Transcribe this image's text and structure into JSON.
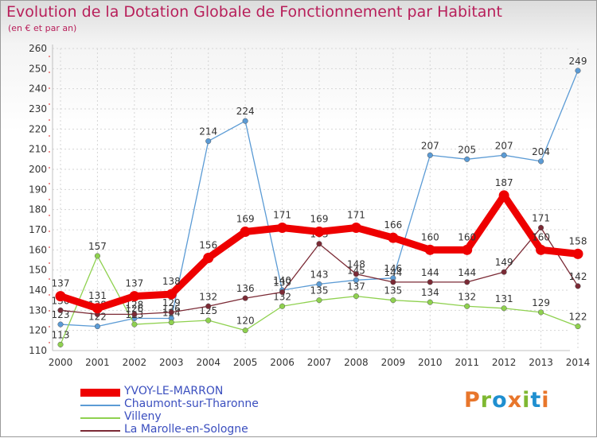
{
  "header": {
    "title": "Evolution de la Dotation Globale de Fonctionnement par Habitant",
    "subtitle": "(en € et par an)"
  },
  "logo": {
    "text": "Proxiti",
    "colors": [
      "#e8762b",
      "#7fb832",
      "#1f8fd0",
      "#e8762b",
      "#7fb832",
      "#1f8fd0",
      "#e8762b"
    ]
  },
  "chart_data": {
    "type": "line",
    "x": [
      "2000",
      "2001",
      "2002",
      "2003",
      "2004",
      "2005",
      "2006",
      "2007",
      "2008",
      "2009",
      "2010",
      "2011",
      "2012",
      "2013",
      "2014"
    ],
    "ylim": [
      110,
      260
    ],
    "yticks": [
      110,
      120,
      130,
      140,
      150,
      160,
      170,
      180,
      190,
      200,
      210,
      220,
      230,
      240,
      250,
      260
    ],
    "grid": true,
    "legend_position": "bottom-left",
    "series": [
      {
        "name": "Chaumont-sur-Tharonne",
        "color": "#5b9bd5",
        "values": [
          123,
          122,
          126,
          126,
          214,
          224,
          140,
          143,
          145,
          146,
          207,
          205,
          207,
          204,
          249
        ]
      },
      {
        "name": "Villeny",
        "color": "#8fd14f",
        "values": [
          113,
          157,
          123,
          124,
          125,
          120,
          132,
          135,
          137,
          135,
          134,
          132,
          131,
          129,
          122
        ]
      },
      {
        "name": "La Marolle-en-Sologne",
        "color": "#7b2a35",
        "values": [
          130,
          128,
          128,
          129,
          132,
          136,
          139,
          163,
          148,
          144,
          144,
          144,
          149,
          171,
          142
        ]
      },
      {
        "name": "YVOY-LE-MARRON",
        "color": "#ee0000",
        "values": [
          137,
          131,
          137,
          138,
          156,
          169,
          171,
          169,
          171,
          166,
          160,
          160,
          187,
          160,
          158
        ]
      }
    ]
  }
}
